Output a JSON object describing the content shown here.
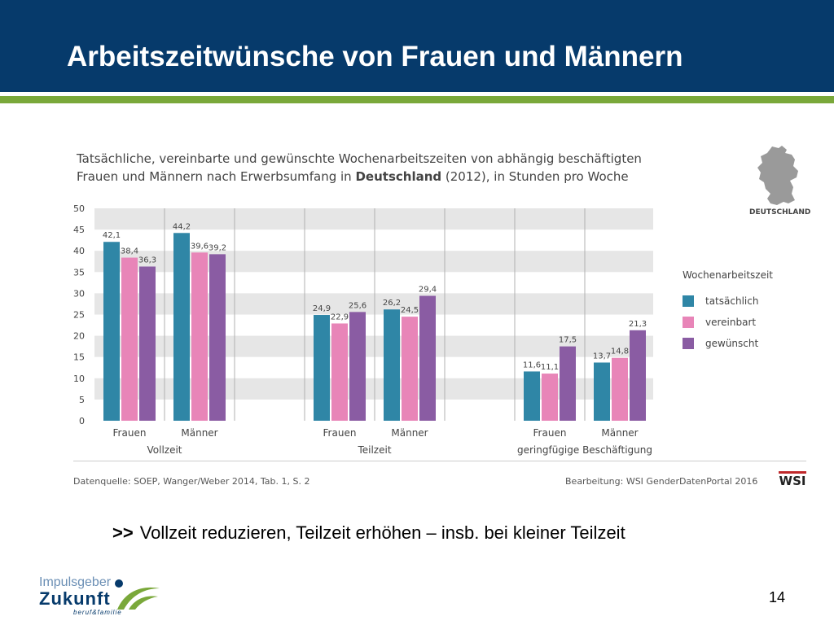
{
  "slide": {
    "title": "Arbeitszeitwünsche von Frauen und Männern",
    "note_arrows": ">>",
    "note_text": "Vollzeit reduzieren, Teilzeit erhöhen – insb. bei kleiner Teilzeit",
    "page_number": "14",
    "logo": {
      "top": "Impulsgeber",
      "main": "Zukunft",
      "sub": "beruf&familie"
    }
  },
  "colors": {
    "header_bg": "#063a6b",
    "accent_green": "#7aa83a",
    "tatsaechlich": "#2f86a6",
    "vereinbart": "#e885b8",
    "gewuenscht": "#8a5ca3",
    "band": "#e6e6e6"
  },
  "figure": {
    "title_line1": "Tatsächliche, vereinbarte und gewünschte Wochenarbeitszeiten von abhängig beschäftigten",
    "title_line2_pre": "Frauen und Männern nach Erwerbsumfang in ",
    "title_line2_bold": "Deutschland",
    "title_line2_post": " (2012), in Stunden pro Woche",
    "map_label": "DEUTSCHLAND",
    "source_left": "Datenquelle: SOEP, Wanger/Weber 2014, Tab. 1, S. 2",
    "source_right": "Bearbeitung: WSI GenderDatenPortal 2016",
    "wsi_logo": "WSI"
  },
  "chart_data": {
    "type": "bar",
    "ylim": [
      0,
      50
    ],
    "yticks": [
      "0",
      "5",
      "10",
      "15",
      "20",
      "25",
      "30",
      "35",
      "40",
      "45",
      "50"
    ],
    "groups": [
      {
        "label": "Vollzeit",
        "categories": [
          "Frauen",
          "Männer"
        ]
      },
      {
        "label": "Teilzeit",
        "categories": [
          "Frauen",
          "Männer"
        ]
      },
      {
        "label": "geringfügige Beschäftigung",
        "categories": [
          "Frauen",
          "Männer"
        ]
      }
    ],
    "legend_title": "Wochenarbeitszeit",
    "legend_position": "right",
    "series": [
      {
        "name": "tatsächlich",
        "values": [
          42.1,
          44.2,
          24.9,
          26.2,
          11.6,
          13.7
        ],
        "labels": [
          "42,1",
          "44,2",
          "24,9",
          "26,2",
          "11,6",
          "13,7"
        ]
      },
      {
        "name": "vereinbart",
        "values": [
          38.4,
          39.6,
          22.9,
          24.5,
          11.1,
          14.8
        ],
        "labels": [
          "38,4",
          "39,6",
          "22,9",
          "24,5",
          "11,1",
          "14,8"
        ]
      },
      {
        "name": "gewünscht",
        "values": [
          36.3,
          39.2,
          25.6,
          29.4,
          17.5,
          21.3
        ],
        "labels": [
          "36,3",
          "39,2",
          "25,6",
          "29,4",
          "17,5",
          "21,3"
        ]
      }
    ]
  }
}
